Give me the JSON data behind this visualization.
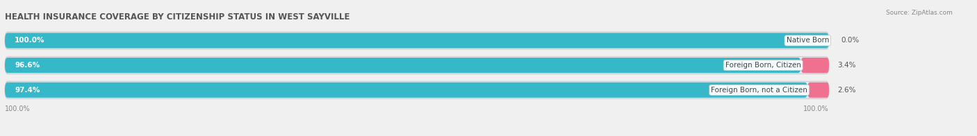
{
  "title": "HEALTH INSURANCE COVERAGE BY CITIZENSHIP STATUS IN WEST SAYVILLE",
  "source": "Source: ZipAtlas.com",
  "categories": [
    "Native Born",
    "Foreign Born, Citizen",
    "Foreign Born, not a Citizen"
  ],
  "with_coverage": [
    100.0,
    96.6,
    97.4
  ],
  "without_coverage": [
    0.0,
    3.4,
    2.6
  ],
  "color_with": "#36b8c8",
  "color_without": "#f07090",
  "color_with_light": "#85d5e0",
  "background_color": "#f0f0f0",
  "bar_bg_color": "#e0e0e8",
  "bar_height": 0.62,
  "title_fontsize": 8.5,
  "label_fontsize": 7.5,
  "tick_fontsize": 7.0,
  "legend_fontsize": 7.5,
  "source_fontsize": 6.5,
  "total_width": 100.0,
  "xlim_max": 115.0
}
